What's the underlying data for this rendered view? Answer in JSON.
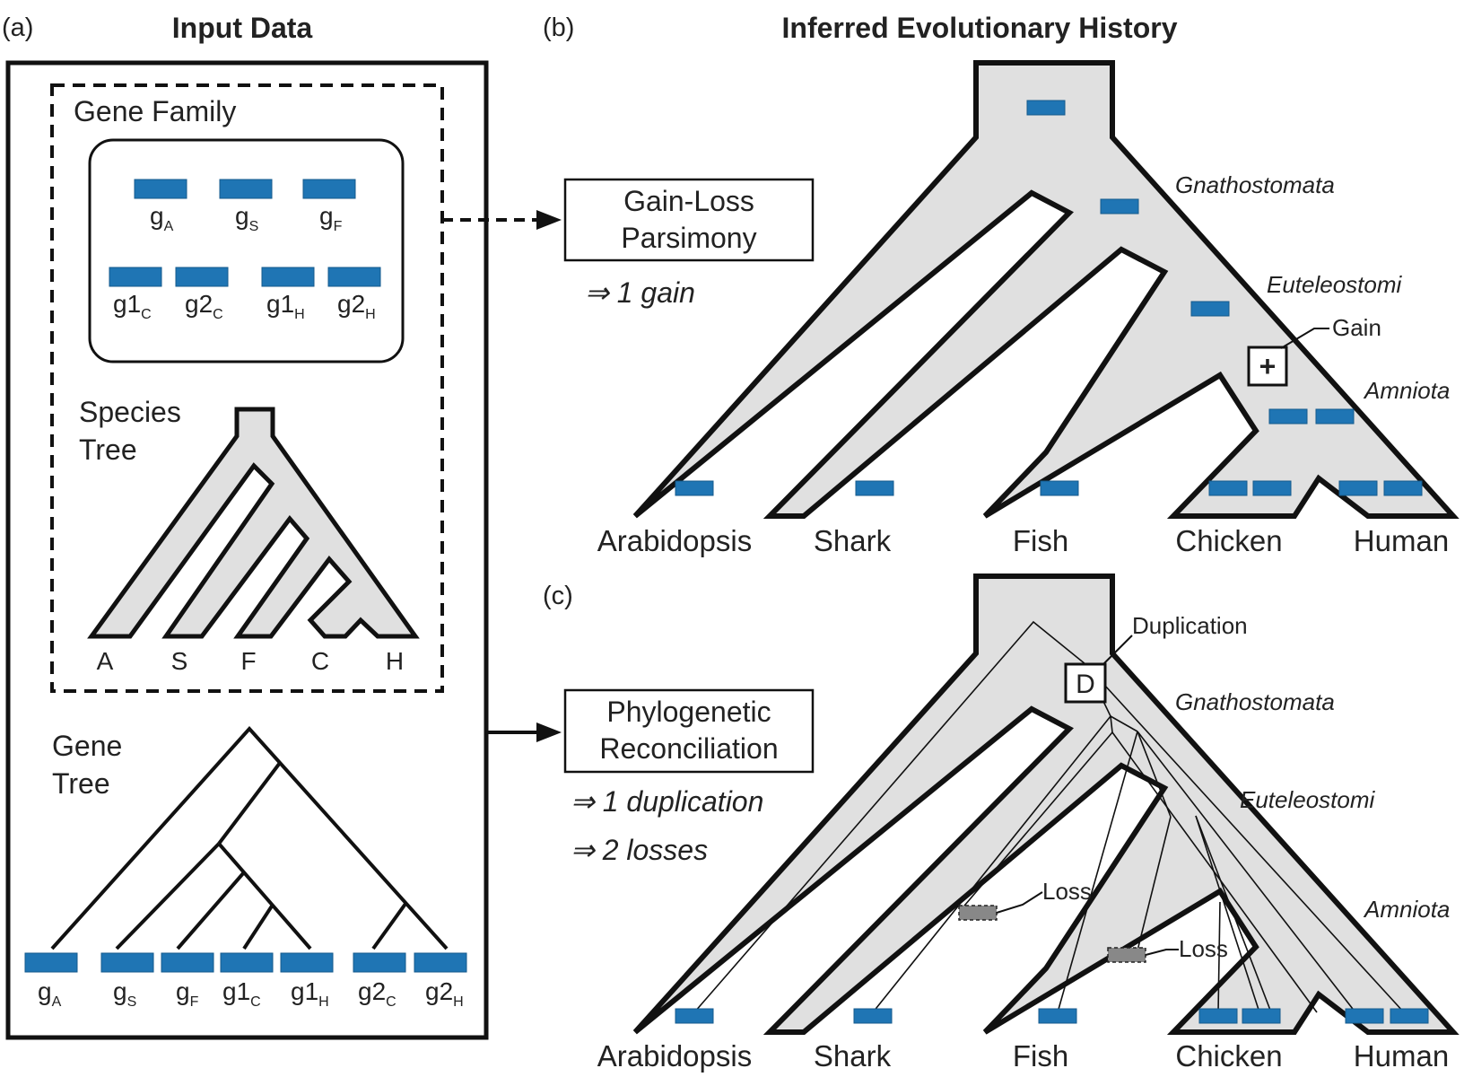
{
  "panel_labels": {
    "a": "(a)",
    "b": "(b)",
    "c": "(c)"
  },
  "titles": {
    "input": "Input Data",
    "history": "Inferred Evolutionary History"
  },
  "input": {
    "gene_family_label": "Gene Family",
    "genes_row1": [
      {
        "base": "g",
        "sub": "A"
      },
      {
        "base": "g",
        "sub": "S"
      },
      {
        "base": "g",
        "sub": "F"
      }
    ],
    "genes_row2": [
      {
        "base": "g1",
        "sub": "C"
      },
      {
        "base": "g2",
        "sub": "C"
      },
      {
        "base": "g1",
        "sub": "H"
      },
      {
        "base": "g2",
        "sub": "H"
      }
    ],
    "species_tree_label_1": "Species",
    "species_tree_label_2": "Tree",
    "species_leaves": [
      "A",
      "S",
      "F",
      "C",
      "H"
    ],
    "gene_tree_label_1": "Gene",
    "gene_tree_label_2": "Tree",
    "gene_tree_leaves": [
      {
        "base": "g",
        "sub": "A"
      },
      {
        "base": "g",
        "sub": "S"
      },
      {
        "base": "g",
        "sub": "F"
      },
      {
        "base": "g1",
        "sub": "C"
      },
      {
        "base": "g1",
        "sub": "H"
      },
      {
        "base": "g2",
        "sub": "C"
      },
      {
        "base": "g2",
        "sub": "H"
      }
    ]
  },
  "methods": {
    "gainloss_line1": "Gain-Loss",
    "gainloss_line2": "Parsimony",
    "gainloss_result": "⇒ 1 gain",
    "recon_line1": "Phylogenetic",
    "recon_line2": "Reconciliation",
    "recon_result1": "⇒ 1 duplication",
    "recon_result2": "⇒ 2 losses"
  },
  "history": {
    "clades": [
      "Gnathostomata",
      "Euteleostomi",
      "Amniota"
    ],
    "species": [
      "Arabidopsis",
      "Shark",
      "Fish",
      "Chicken",
      "Human"
    ],
    "gain_label": "Gain",
    "gain_symbol": "+",
    "duplication_label": "Duplication",
    "duplication_symbol": "D",
    "loss_label": "Loss"
  },
  "colors": {
    "gene": "#1f75b4",
    "tree_fill": "#e0e0e0",
    "loss": "#888888"
  }
}
